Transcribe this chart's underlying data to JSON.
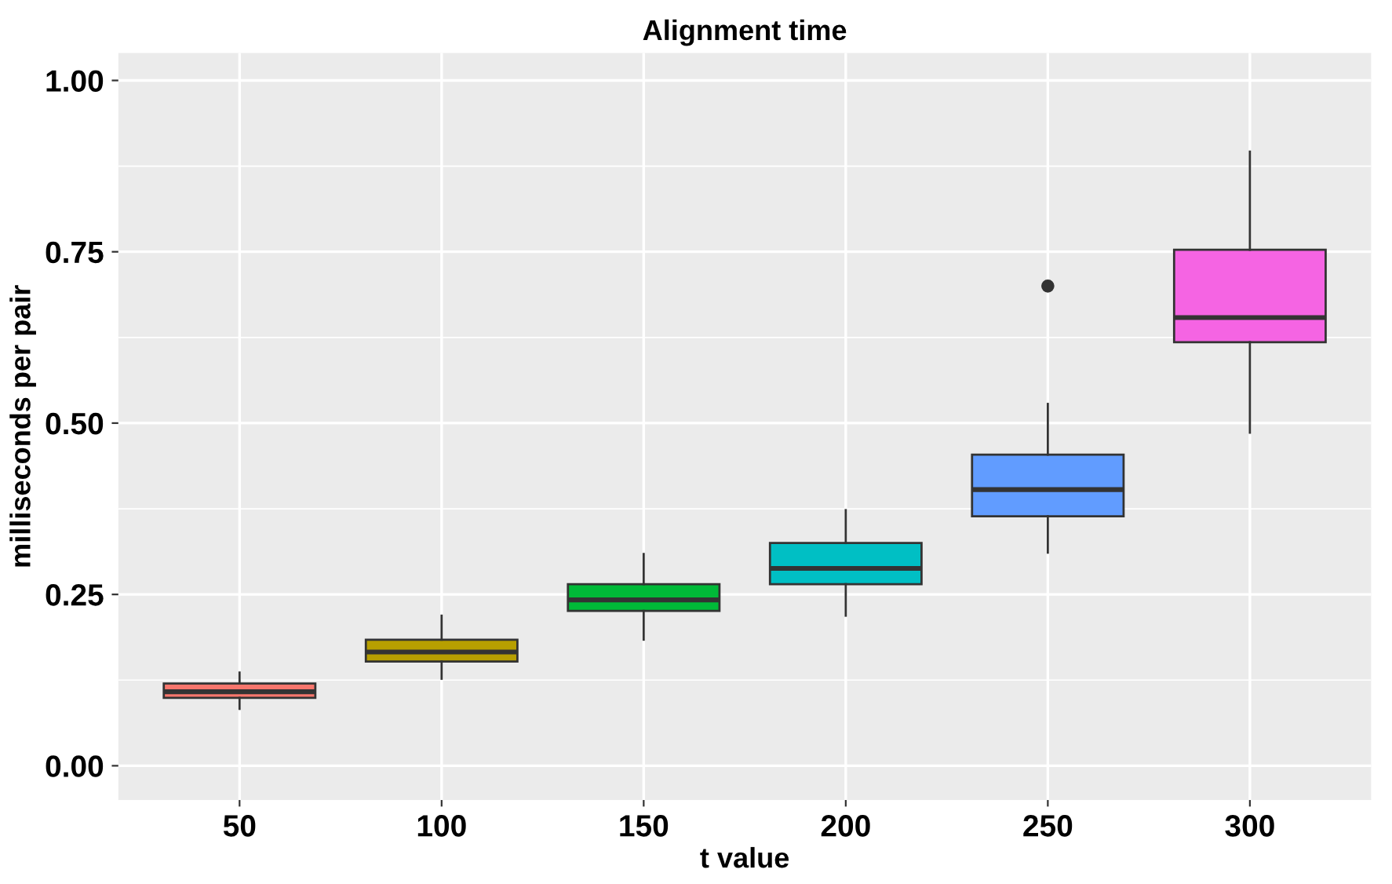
{
  "chart_data": {
    "type": "box",
    "title": "Alignment time",
    "xlabel": "t value",
    "ylabel": "milliseconds per pair",
    "categories": [
      "50",
      "100",
      "150",
      "200",
      "250",
      "300"
    ],
    "colors": [
      "#f8766d",
      "#b79f00",
      "#00ba38",
      "#00bfc4",
      "#619cff",
      "#f564e3"
    ],
    "boxes": [
      {
        "low": 0.083,
        "q1": 0.099,
        "median": 0.108,
        "q3": 0.12,
        "high": 0.136
      },
      {
        "low": 0.127,
        "q1": 0.152,
        "median": 0.166,
        "q3": 0.184,
        "high": 0.219
      },
      {
        "low": 0.184,
        "q1": 0.226,
        "median": 0.242,
        "q3": 0.265,
        "high": 0.309
      },
      {
        "low": 0.219,
        "q1": 0.265,
        "median": 0.288,
        "q3": 0.325,
        "high": 0.373
      },
      {
        "low": 0.311,
        "q1": 0.364,
        "median": 0.403,
        "q3": 0.454,
        "high": 0.528,
        "outliers": [
          0.7
        ]
      },
      {
        "low": 0.486,
        "q1": 0.618,
        "median": 0.654,
        "q3": 0.753,
        "high": 0.896
      }
    ],
    "ylim": [
      -0.05,
      1.04
    ],
    "yticks": [
      {
        "value": 0,
        "label": "0.00"
      },
      {
        "value": 0.25,
        "label": "0.25"
      },
      {
        "value": 0.5,
        "label": "0.50"
      },
      {
        "value": 0.75,
        "label": "0.75"
      },
      {
        "value": 1,
        "label": "1.00"
      }
    ],
    "grid": true,
    "legend": false
  }
}
